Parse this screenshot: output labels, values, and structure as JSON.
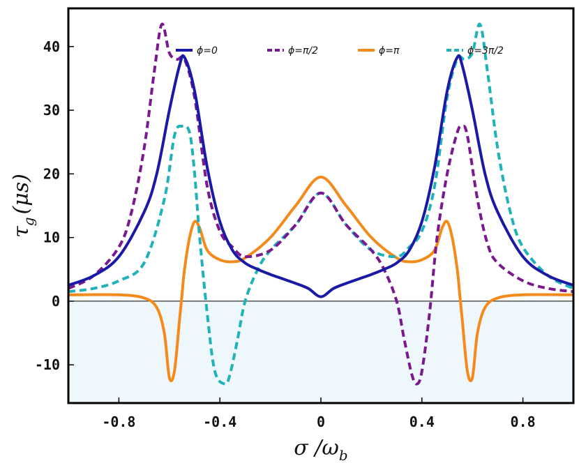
{
  "chart_data": {
    "type": "line",
    "title": "",
    "xlabel": "σ /ω",
    "xlabel_sub": "b",
    "ylabel": "τ",
    "ylabel_sub": "g",
    "ylabel_unit": "(μs)",
    "xlim": [
      -1.0,
      1.0
    ],
    "ylim": [
      -16,
      46
    ],
    "xticks": [
      -0.8,
      -0.4,
      0,
      0.4,
      0.8
    ],
    "xtick_labels": [
      "-0.8",
      "-0.4",
      "0",
      "0.4",
      "0.8"
    ],
    "yticks": [
      -10,
      0,
      10,
      20,
      30,
      40
    ],
    "ytick_labels": [
      "-10",
      "0",
      "10",
      "20",
      "30",
      "40"
    ],
    "zero_line": 0,
    "negative_region_color": "#eef7fb",
    "legend_position": "top",
    "series": [
      {
        "name": "ϕ=0",
        "color": "#1a1aa6",
        "dash": "solid",
        "x": [
          -1.0,
          -0.9,
          -0.8,
          -0.7,
          -0.65,
          -0.6,
          -0.56,
          -0.54,
          -0.5,
          -0.45,
          -0.4,
          -0.35,
          -0.3,
          -0.25,
          -0.2,
          -0.15,
          -0.1,
          -0.05,
          0.0,
          0.05,
          0.1,
          0.15,
          0.2,
          0.25,
          0.3,
          0.35,
          0.4,
          0.45,
          0.5,
          0.54,
          0.56,
          0.6,
          0.65,
          0.7,
          0.8,
          0.9,
          1.0
        ],
        "y": [
          2.5,
          4.0,
          7.0,
          14.0,
          20.0,
          30.0,
          37.0,
          38.3,
          33.0,
          21.0,
          12.5,
          8.0,
          6.0,
          5.0,
          4.2,
          3.5,
          2.8,
          2.0,
          0.7,
          2.0,
          2.8,
          3.5,
          4.2,
          5.0,
          6.0,
          8.0,
          12.5,
          21.0,
          33.0,
          38.3,
          37.0,
          30.0,
          20.0,
          14.0,
          7.0,
          4.0,
          2.5
        ]
      },
      {
        "name": "ϕ=π/2",
        "color": "#7a1890",
        "dash": "dashed",
        "x": [
          -1.0,
          -0.9,
          -0.8,
          -0.75,
          -0.7,
          -0.66,
          -0.63,
          -0.6,
          -0.57,
          -0.54,
          -0.5,
          -0.45,
          -0.4,
          -0.35,
          -0.3,
          -0.2,
          -0.1,
          0.0,
          0.1,
          0.2,
          0.25,
          0.3,
          0.33,
          0.36,
          0.38,
          0.4,
          0.43,
          0.46,
          0.5,
          0.54,
          0.56,
          0.58,
          0.62,
          0.66,
          0.7,
          0.8,
          0.9,
          1.0
        ],
        "y": [
          2.0,
          4.0,
          8.5,
          14.0,
          24.0,
          36.0,
          43.5,
          39.0,
          38.0,
          38.0,
          32.0,
          18.0,
          11.0,
          8.5,
          7.0,
          8.0,
          12.0,
          17.0,
          12.0,
          8.0,
          5.0,
          0.0,
          -6.0,
          -11.5,
          -13.0,
          -11.0,
          -2.0,
          10.0,
          20.0,
          26.5,
          27.5,
          26.0,
          16.0,
          9.0,
          6.0,
          3.2,
          2.0,
          1.5
        ]
      },
      {
        "name": "ϕ=π",
        "color": "#f58a1c",
        "dash": "solid",
        "x": [
          -1.0,
          -0.8,
          -0.7,
          -0.65,
          -0.62,
          -0.6,
          -0.58,
          -0.56,
          -0.55,
          -0.54,
          -0.52,
          -0.5,
          -0.48,
          -0.45,
          -0.4,
          -0.35,
          -0.3,
          -0.2,
          -0.1,
          0.0,
          0.1,
          0.2,
          0.3,
          0.35,
          0.4,
          0.45,
          0.48,
          0.5,
          0.52,
          0.54,
          0.55,
          0.56,
          0.58,
          0.6,
          0.62,
          0.65,
          0.7,
          0.8,
          1.0
        ],
        "y": [
          1.0,
          1.0,
          0.5,
          -1.0,
          -5.0,
          -12.0,
          -11.0,
          -3.0,
          1.0,
          5.0,
          10.0,
          12.5,
          11.5,
          8.0,
          6.5,
          6.2,
          6.8,
          10.0,
          15.0,
          19.5,
          15.0,
          10.0,
          6.8,
          6.2,
          6.5,
          8.0,
          11.5,
          12.5,
          10.0,
          5.0,
          1.0,
          -3.0,
          -11.0,
          -12.0,
          -5.0,
          -1.0,
          0.5,
          1.0,
          1.0
        ]
      },
      {
        "name": "ϕ=3π/2",
        "color": "#1fb2b8",
        "dash": "dashed",
        "x": [
          -1.0,
          -0.9,
          -0.8,
          -0.7,
          -0.62,
          -0.58,
          -0.55,
          -0.52,
          -0.5,
          -0.48,
          -0.45,
          -0.42,
          -0.38,
          -0.36,
          -0.33,
          -0.3,
          -0.25,
          -0.2,
          -0.1,
          0.0,
          0.1,
          0.2,
          0.3,
          0.35,
          0.4,
          0.45,
          0.5,
          0.54,
          0.57,
          0.6,
          0.63,
          0.66,
          0.7,
          0.75,
          0.8,
          0.9,
          1.0
        ],
        "y": [
          1.5,
          2.0,
          3.2,
          6.0,
          16.0,
          26.0,
          27.5,
          26.5,
          20.0,
          10.0,
          -2.0,
          -11.0,
          -13.0,
          -11.5,
          -6.0,
          0.0,
          5.0,
          8.0,
          12.0,
          17.0,
          12.0,
          8.0,
          7.0,
          8.5,
          11.0,
          18.0,
          32.0,
          38.0,
          38.0,
          39.0,
          43.5,
          36.0,
          24.0,
          14.0,
          8.5,
          4.0,
          2.0
        ]
      }
    ]
  }
}
